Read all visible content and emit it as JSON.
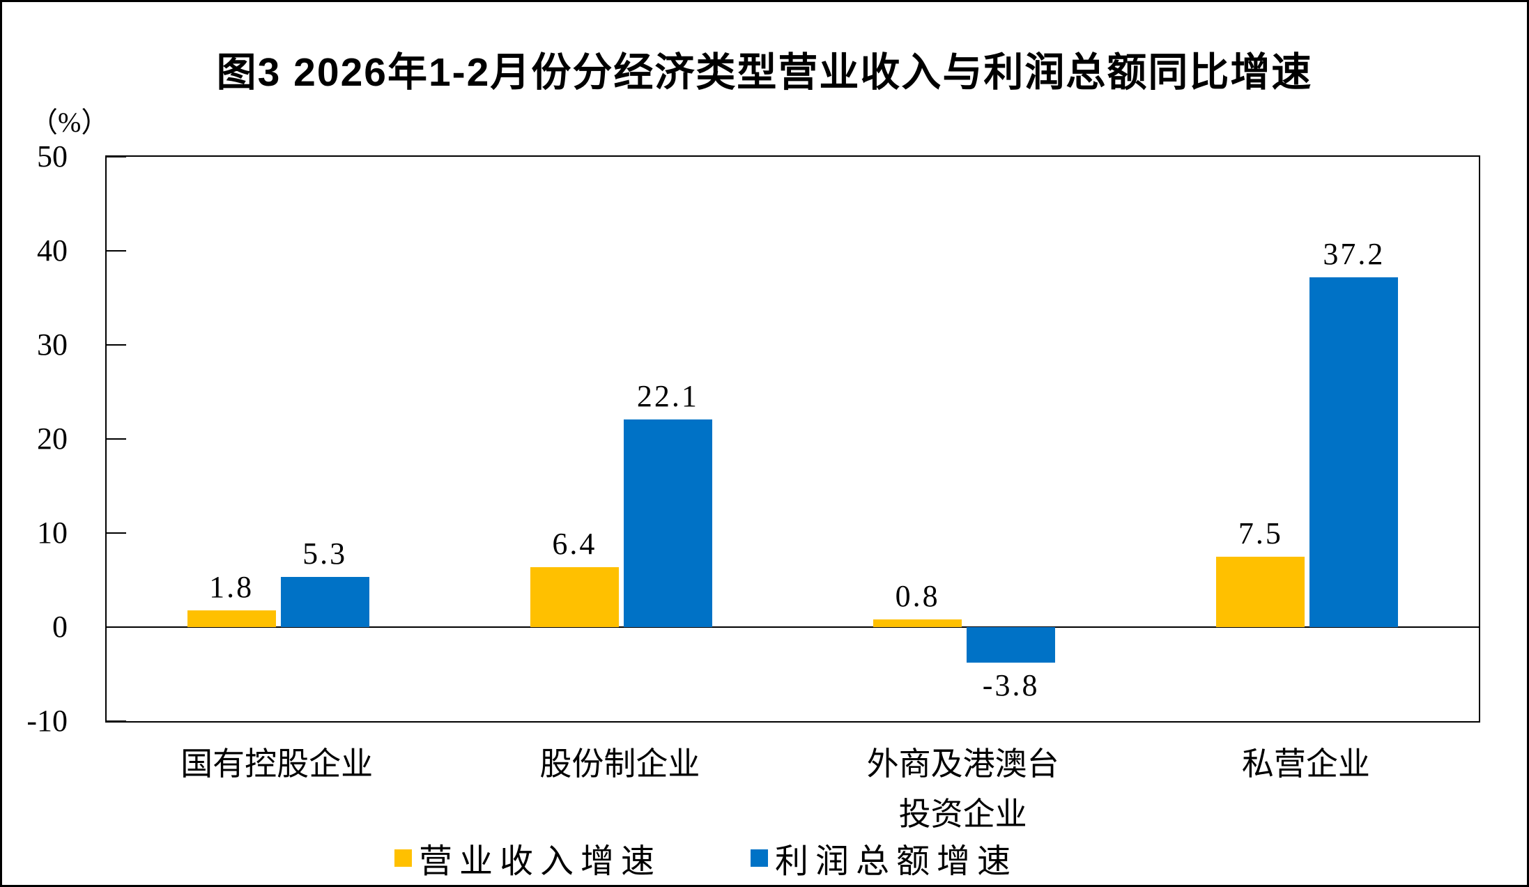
{
  "chart_data": {
    "type": "bar",
    "title": "图3 2026年1-2月份分经济类型营业收入与利润总额同比增速",
    "unit_label": "（%）",
    "categories": [
      "国有控股企业",
      "股份制企业",
      "外商及港澳台\n投资企业",
      "私营企业"
    ],
    "series": [
      {
        "name": "营业收入增速",
        "color": "#FFC000",
        "values": [
          1.8,
          6.4,
          0.8,
          7.5
        ]
      },
      {
        "name": "利润总额增速",
        "color": "#0072C6",
        "values": [
          5.3,
          22.1,
          -3.8,
          37.2
        ]
      }
    ],
    "ylim": [
      -10,
      50
    ],
    "yticks": [
      50,
      40,
      30,
      20,
      10,
      0,
      -10
    ],
    "grid": false,
    "legend_position": "bottom",
    "bar_value_labels": true,
    "axis_color": "#000000",
    "text_color": "#000000"
  }
}
